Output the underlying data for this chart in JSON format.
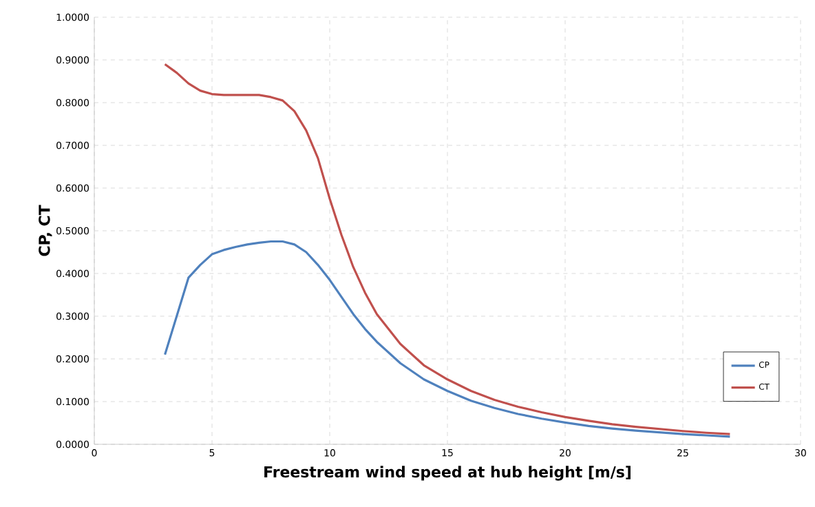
{
  "chart_data": {
    "type": "line",
    "xlabel": "Freestream wind speed at hub height [m/s]",
    "ylabel": "CP, CT",
    "xlim": [
      0,
      30
    ],
    "xticks": [
      0,
      5,
      10,
      15,
      20,
      25,
      30
    ],
    "ylim": [
      0,
      1
    ],
    "yticks": [
      {
        "value": 0,
        "label": "0.0000"
      },
      {
        "value": 0.1,
        "label": "0.1000"
      },
      {
        "value": 0.2,
        "label": "0.2000"
      },
      {
        "value": 0.3,
        "label": "0.3000"
      },
      {
        "value": 0.4,
        "label": "0.4000"
      },
      {
        "value": 0.5,
        "label": "0.5000"
      },
      {
        "value": 0.6,
        "label": "0.6000"
      },
      {
        "value": 0.7,
        "label": "0.7000"
      },
      {
        "value": 0.8,
        "label": "0.8000"
      },
      {
        "value": 0.9,
        "label": "0.9000"
      },
      {
        "value": 1,
        "label": "1.0000"
      }
    ],
    "grid": true,
    "legend": "bottom right",
    "marker": "none",
    "line_style": "solid",
    "x": [
      3,
      3.5,
      4,
      4.5,
      5,
      5.5,
      6,
      6.5,
      7,
      7.5,
      8,
      8.5,
      9,
      9.5,
      10,
      10.5,
      11,
      11.5,
      12,
      13,
      14,
      15,
      16,
      17,
      18,
      19,
      20,
      21,
      22,
      23,
      24,
      25,
      26,
      27
    ],
    "series": [
      {
        "name": "CP",
        "color": "#4f81bd",
        "values": [
          0.21,
          0.3,
          0.39,
          0.42,
          0.445,
          0.455,
          0.462,
          0.468,
          0.472,
          0.475,
          0.475,
          0.468,
          0.45,
          0.42,
          0.385,
          0.345,
          0.305,
          0.27,
          0.24,
          0.19,
          0.152,
          0.125,
          0.102,
          0.085,
          0.071,
          0.06,
          0.051,
          0.043,
          0.037,
          0.032,
          0.028,
          0.024,
          0.021,
          0.018
        ]
      },
      {
        "name": "CT",
        "color": "#c0504d",
        "values": [
          0.89,
          0.87,
          0.845,
          0.828,
          0.82,
          0.818,
          0.818,
          0.818,
          0.818,
          0.813,
          0.805,
          0.78,
          0.735,
          0.67,
          0.575,
          0.49,
          0.415,
          0.355,
          0.305,
          0.235,
          0.185,
          0.152,
          0.125,
          0.104,
          0.088,
          0.075,
          0.064,
          0.055,
          0.047,
          0.041,
          0.036,
          0.031,
          0.027,
          0.024
        ]
      }
    ]
  }
}
